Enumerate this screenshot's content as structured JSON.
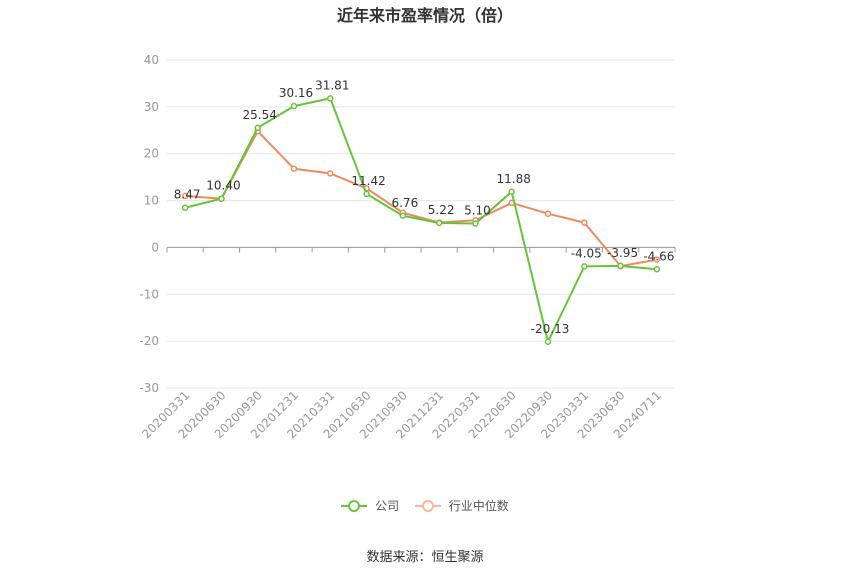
{
  "chart_data": {
    "type": "line",
    "title": "近年来市盈率情况（倍）",
    "categories": [
      "20200331",
      "20200630",
      "20200930",
      "20201231",
      "20210331",
      "20210630",
      "20210930",
      "20211231",
      "20220331",
      "20220630",
      "20220930",
      "20230331",
      "20230630",
      "20240711"
    ],
    "series": [
      {
        "name": "公司",
        "color": "#66c43a",
        "values": [
          8.47,
          10.4,
          25.54,
          30.16,
          31.81,
          11.42,
          6.76,
          5.22,
          5.1,
          11.88,
          -20.13,
          -4.05,
          -3.95,
          -4.66
        ],
        "labels": [
          "8.47",
          "10.40",
          "25.54",
          "30.16",
          "31.81",
          "11.42",
          "6.76",
          "5.22",
          "5.10",
          "11.88",
          "-20.13",
          "-4.05",
          "-3.95",
          "-4.66"
        ]
      },
      {
        "name": "行业中位数",
        "color": "#f08a5d",
        "values": [
          11.0,
          10.4,
          24.8,
          16.8,
          15.8,
          12.6,
          7.4,
          5.3,
          5.8,
          9.5,
          7.2,
          5.3,
          -4.0,
          -2.6
        ]
      }
    ],
    "yticks": [
      40,
      30,
      20,
      10,
      0,
      -10,
      -20,
      -30
    ],
    "ylim": [
      -30,
      40
    ],
    "grid": true,
    "legend_position": "bottom"
  },
  "source": "数据来源：恒生聚源"
}
